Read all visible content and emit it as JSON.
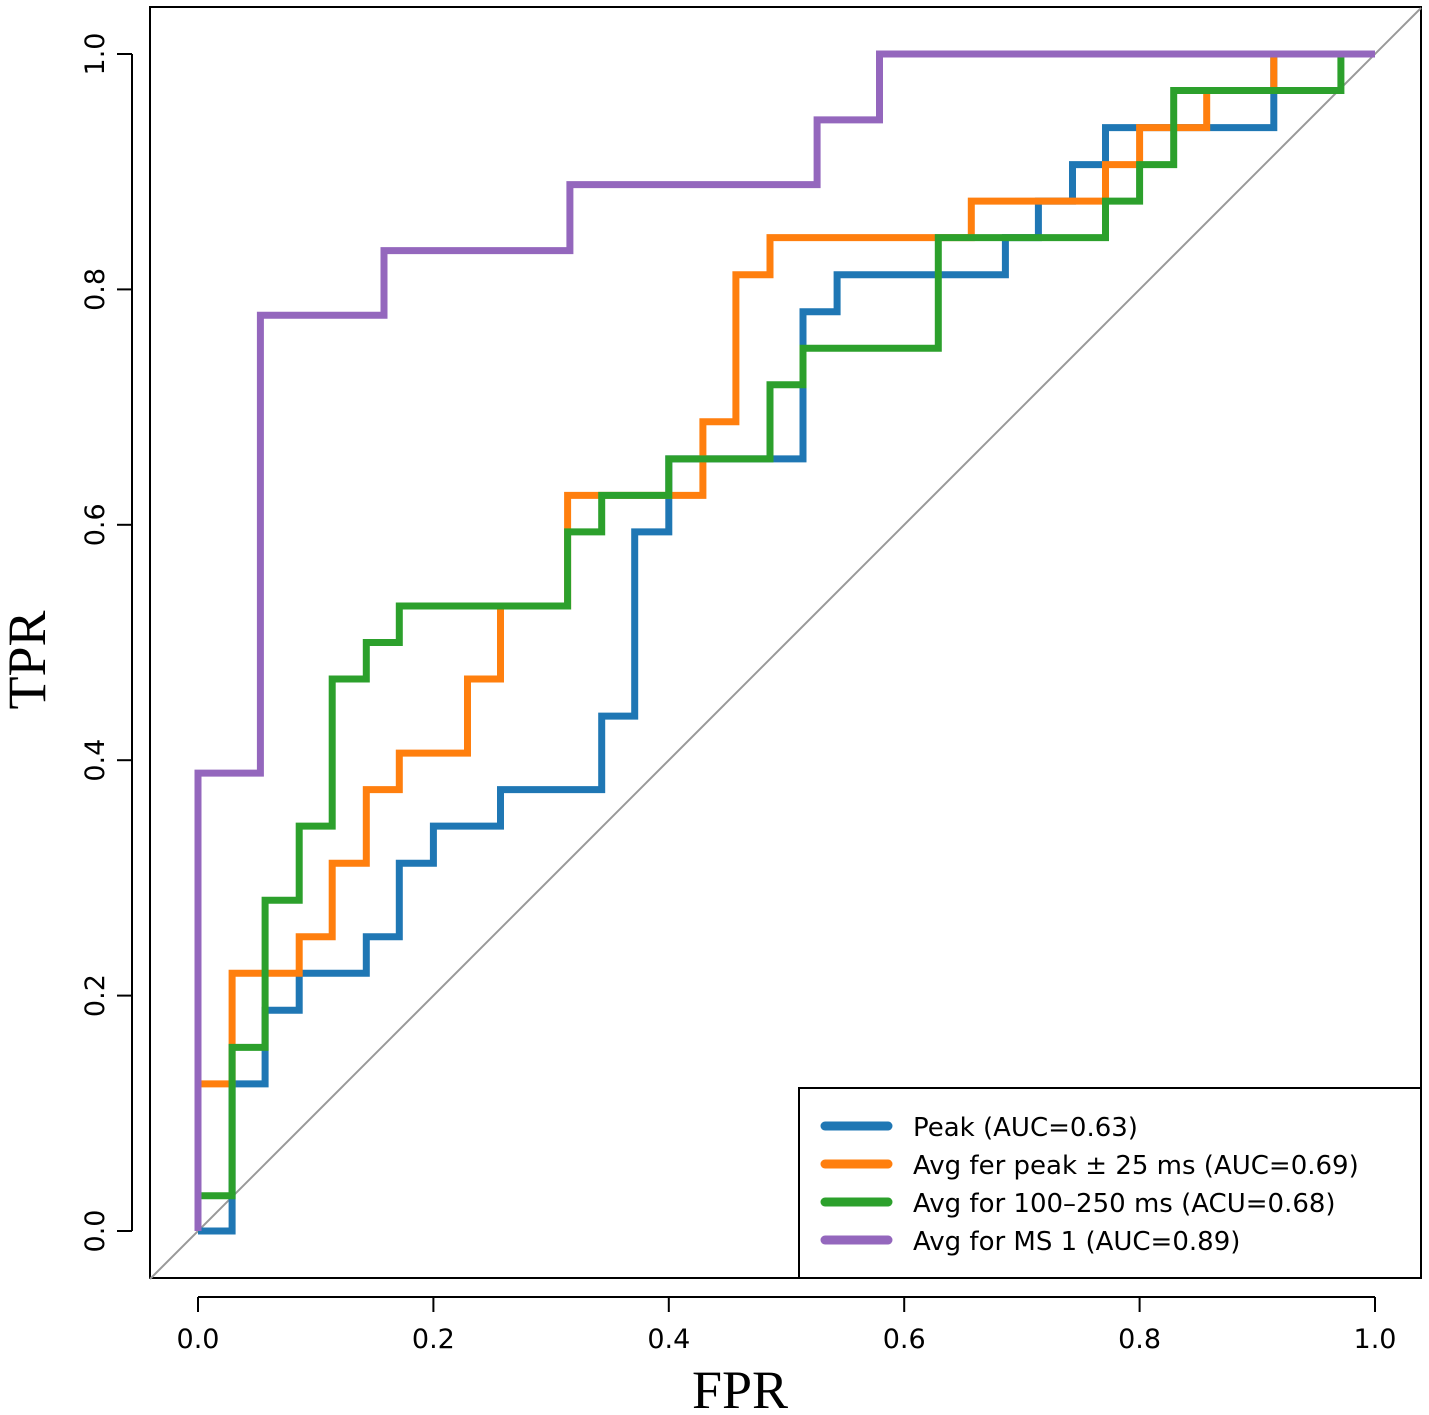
{
  "chart_data": {
    "type": "line",
    "title": "",
    "xlabel": "FPR",
    "ylabel": "TPR",
    "xlim": [
      0,
      1
    ],
    "ylim": [
      0,
      1
    ],
    "x_ticks": [
      "0.0",
      "0.2",
      "0.4",
      "0.6",
      "0.8",
      "1.0"
    ],
    "y_ticks": [
      "0.0",
      "0.2",
      "0.4",
      "0.6",
      "0.8",
      "1.0"
    ],
    "x_tick_values": [
      0,
      0.2,
      0.4,
      0.6,
      0.8,
      1.0
    ],
    "y_tick_values": [
      0,
      0.2,
      0.4,
      0.6,
      0.8,
      1.0
    ],
    "reference_line": {
      "x": [
        0,
        1
      ],
      "y": [
        0,
        1
      ],
      "color": "#999999"
    },
    "legend_position": "bottom-right",
    "series": [
      {
        "name": "Peak (AUC=0.63)",
        "color": "#1f77b4",
        "x": [
          0,
          0,
          0.029,
          0.029,
          0.057,
          0.057,
          0.086,
          0.086,
          0.143,
          0.143,
          0.171,
          0.171,
          0.2,
          0.2,
          0.257,
          0.257,
          0.343,
          0.343,
          0.371,
          0.371,
          0.4,
          0.4,
          0.486,
          0.486,
          0.514,
          0.514,
          0.543,
          0.543,
          0.686,
          0.686,
          0.714,
          0.714,
          0.743,
          0.743,
          0.771,
          0.771,
          0.914,
          0.914,
          1.0
        ],
        "y": [
          0,
          0,
          0,
          0.125,
          0.125,
          0.1875,
          0.1875,
          0.219,
          0.219,
          0.25,
          0.25,
          0.3125,
          0.3125,
          0.344,
          0.344,
          0.375,
          0.375,
          0.4375,
          0.4375,
          0.594,
          0.594,
          0.656,
          0.656,
          0.656,
          0.656,
          0.781,
          0.781,
          0.8125,
          0.8125,
          0.844,
          0.844,
          0.875,
          0.875,
          0.906,
          0.906,
          0.9375,
          0.9375,
          1.0,
          1.0
        ]
      },
      {
        "name": "Avg fer peak ± 25 ms (AUC=0.69)",
        "color": "#ff7f0e",
        "x": [
          0,
          0,
          0.029,
          0.029,
          0.086,
          0.086,
          0.114,
          0.114,
          0.143,
          0.143,
          0.171,
          0.171,
          0.229,
          0.229,
          0.257,
          0.257,
          0.314,
          0.314,
          0.343,
          0.343,
          0.429,
          0.429,
          0.457,
          0.457,
          0.486,
          0.486,
          0.657,
          0.657,
          0.771,
          0.771,
          0.8,
          0.8,
          0.857,
          0.857,
          0.914,
          0.914,
          1.0
        ],
        "y": [
          0,
          0.125,
          0.125,
          0.219,
          0.219,
          0.25,
          0.25,
          0.3125,
          0.3125,
          0.375,
          0.375,
          0.406,
          0.406,
          0.469,
          0.469,
          0.531,
          0.531,
          0.625,
          0.625,
          0.625,
          0.625,
          0.6875,
          0.6875,
          0.8125,
          0.8125,
          0.844,
          0.844,
          0.875,
          0.875,
          0.906,
          0.906,
          0.9375,
          0.9375,
          0.969,
          0.969,
          1.0,
          1.0
        ]
      },
      {
        "name": "Avg for 100–250 ms (ACU=0.68)",
        "color": "#2ca02c",
        "x": [
          0,
          0,
          0.029,
          0.029,
          0.057,
          0.057,
          0.086,
          0.086,
          0.114,
          0.114,
          0.143,
          0.143,
          0.171,
          0.171,
          0.314,
          0.314,
          0.343,
          0.343,
          0.4,
          0.4,
          0.486,
          0.486,
          0.514,
          0.514,
          0.629,
          0.629,
          0.771,
          0.771,
          0.8,
          0.8,
          0.829,
          0.829,
          0.971,
          0.971,
          1.0
        ],
        "y": [
          0,
          0.03,
          0.03,
          0.156,
          0.156,
          0.281,
          0.281,
          0.344,
          0.344,
          0.469,
          0.469,
          0.5,
          0.5,
          0.531,
          0.531,
          0.594,
          0.594,
          0.625,
          0.625,
          0.656,
          0.656,
          0.719,
          0.719,
          0.75,
          0.75,
          0.844,
          0.844,
          0.875,
          0.875,
          0.906,
          0.906,
          0.969,
          0.969,
          1.0,
          1.0
        ]
      },
      {
        "name": "Avg for MS 1 (AUC=0.89)",
        "color": "#9467bd",
        "x": [
          0,
          0,
          0.053,
          0.053,
          0.158,
          0.158,
          0.316,
          0.316,
          0.526,
          0.526,
          0.579,
          0.579,
          1.0
        ],
        "y": [
          0,
          0.389,
          0.389,
          0.778,
          0.778,
          0.833,
          0.833,
          0.889,
          0.889,
          0.944,
          0.944,
          1.0,
          1.0
        ]
      }
    ]
  }
}
